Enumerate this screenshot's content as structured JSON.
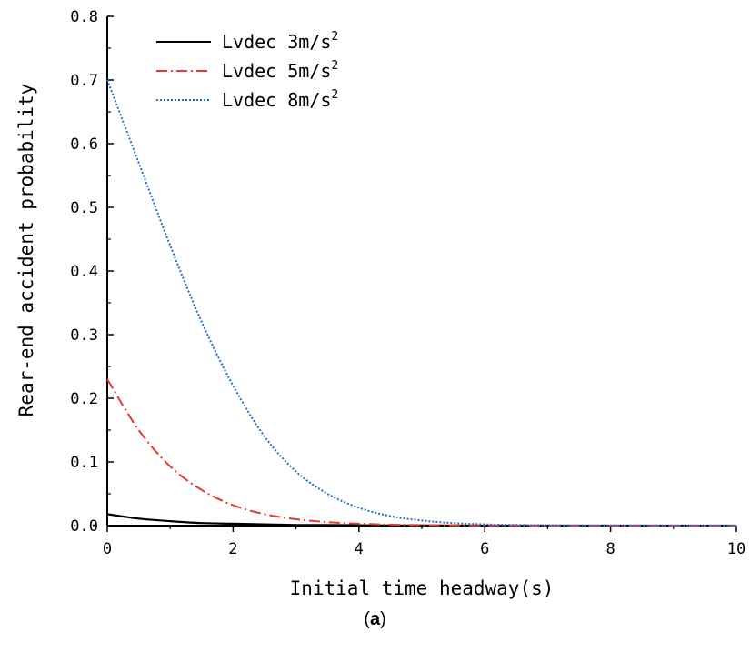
{
  "chart_data": {
    "type": "line",
    "xlabel": "Initial time headway(s)",
    "ylabel": "Rear-end accident probability",
    "xlim": [
      0,
      10
    ],
    "ylim": [
      0,
      0.8
    ],
    "xticks": [
      "0",
      "2",
      "4",
      "6",
      "8",
      "10"
    ],
    "yticks": [
      "0.0",
      "0.1",
      "0.2",
      "0.3",
      "0.4",
      "0.5",
      "0.6",
      "0.7",
      "0.8"
    ],
    "legend_position": "top-left",
    "grid": false,
    "x": [
      0,
      0.5,
      1,
      1.5,
      2,
      2.5,
      3,
      3.5,
      4,
      4.5,
      5,
      5.5,
      6,
      6.5,
      7,
      7.5,
      8,
      8.5,
      9,
      9.5,
      10
    ],
    "series": [
      {
        "name": "Lvdec 3m/s",
        "unit_sup": "2",
        "color": "#000000",
        "style": "solid",
        "values": [
          0.018,
          0.011,
          0.007,
          0.004,
          0.003,
          0.002,
          0.001,
          0.001,
          0.0005,
          0.0003,
          0.0002,
          0.0001,
          0.0001,
          0,
          0,
          0,
          0,
          0,
          0,
          0,
          0
        ]
      },
      {
        "name": "Lvdec 5m/s",
        "unit_sup": "2",
        "color": "#e8382f",
        "style": "dashdot",
        "values": [
          0.23,
          0.15,
          0.093,
          0.056,
          0.032,
          0.018,
          0.01,
          0.0055,
          0.003,
          0.0016,
          0.0009,
          0.0005,
          0.0003,
          0.0001,
          0,
          0,
          0,
          0,
          0,
          0,
          0
        ]
      },
      {
        "name": "Lvdec 8m/s",
        "unit_sup": "2",
        "color": "#1f6fd0",
        "style": "dotted",
        "values": [
          0.7,
          0.57,
          0.44,
          0.32,
          0.22,
          0.14,
          0.085,
          0.05,
          0.028,
          0.015,
          0.008,
          0.004,
          0.002,
          0.001,
          0.0006,
          0.0003,
          0.0002,
          0.0001,
          0,
          0,
          0
        ]
      }
    ]
  },
  "caption": {
    "open": "(",
    "letter": "a",
    "close": ")"
  }
}
